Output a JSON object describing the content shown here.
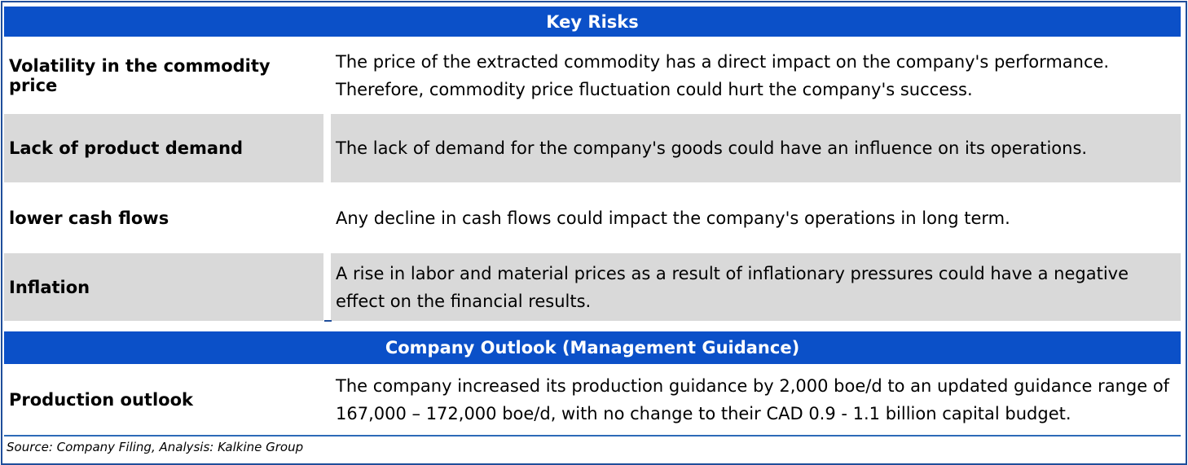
{
  "key_risks": {
    "header": "Key Risks",
    "rows": [
      {
        "label": "Volatility in the commodity price",
        "text": "The price of the extracted commodity has a direct impact on the company's performance. Therefore, commodity price fluctuation could hurt the company's success."
      },
      {
        "label": "Lack of product demand",
        "text": "The lack of demand for the company's goods could have an influence on its operations."
      },
      {
        "label": "lower cash flows",
        "text": "Any decline in cash flows could impact the company's operations in long term."
      },
      {
        "label": "Inflation",
        "text": "A rise in labor and material prices as a result of inflationary pressures could have a negative effect on the financial results."
      }
    ]
  },
  "outlook": {
    "header": "Company Outlook (Management Guidance)",
    "rows": [
      {
        "label": "Production outlook",
        "text": "The company increased its production guidance by 2,000 boe/d to an updated guidance range of 167,000 – 172,000 boe/d, with no change to their CAD 0.9 - 1.1 billion capital budget."
      }
    ]
  },
  "source": "Source: Company Filing, Analysis: Kalkine Group",
  "colors": {
    "header_band": "#0b50c8",
    "shaded_row": "#d9d9d9",
    "border": "#1f4e9b"
  }
}
